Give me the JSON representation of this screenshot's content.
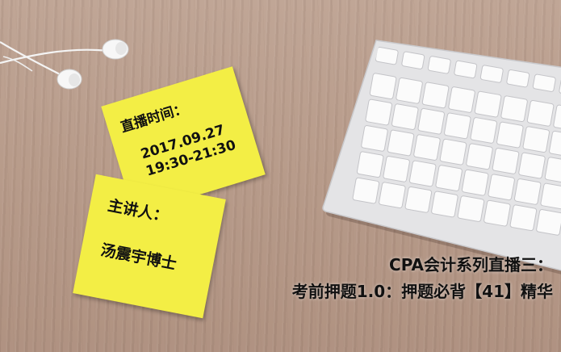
{
  "note_top": {
    "label": "直播时间：",
    "date": "2017.09.27",
    "time": "19:30-21:30"
  },
  "note_bottom": {
    "label": "主讲人：",
    "speaker": "汤震宇博士"
  },
  "caption": {
    "line1": "CPA会计系列直播三：",
    "line2": "考前押题1.0：押题必背【41】精华"
  },
  "colors": {
    "note_yellow": "#f3ee45",
    "desk": "#b79a89",
    "keyboard_body": "#e9e9ea"
  },
  "icons": [
    "earphones-icon",
    "keyboard-icon"
  ]
}
